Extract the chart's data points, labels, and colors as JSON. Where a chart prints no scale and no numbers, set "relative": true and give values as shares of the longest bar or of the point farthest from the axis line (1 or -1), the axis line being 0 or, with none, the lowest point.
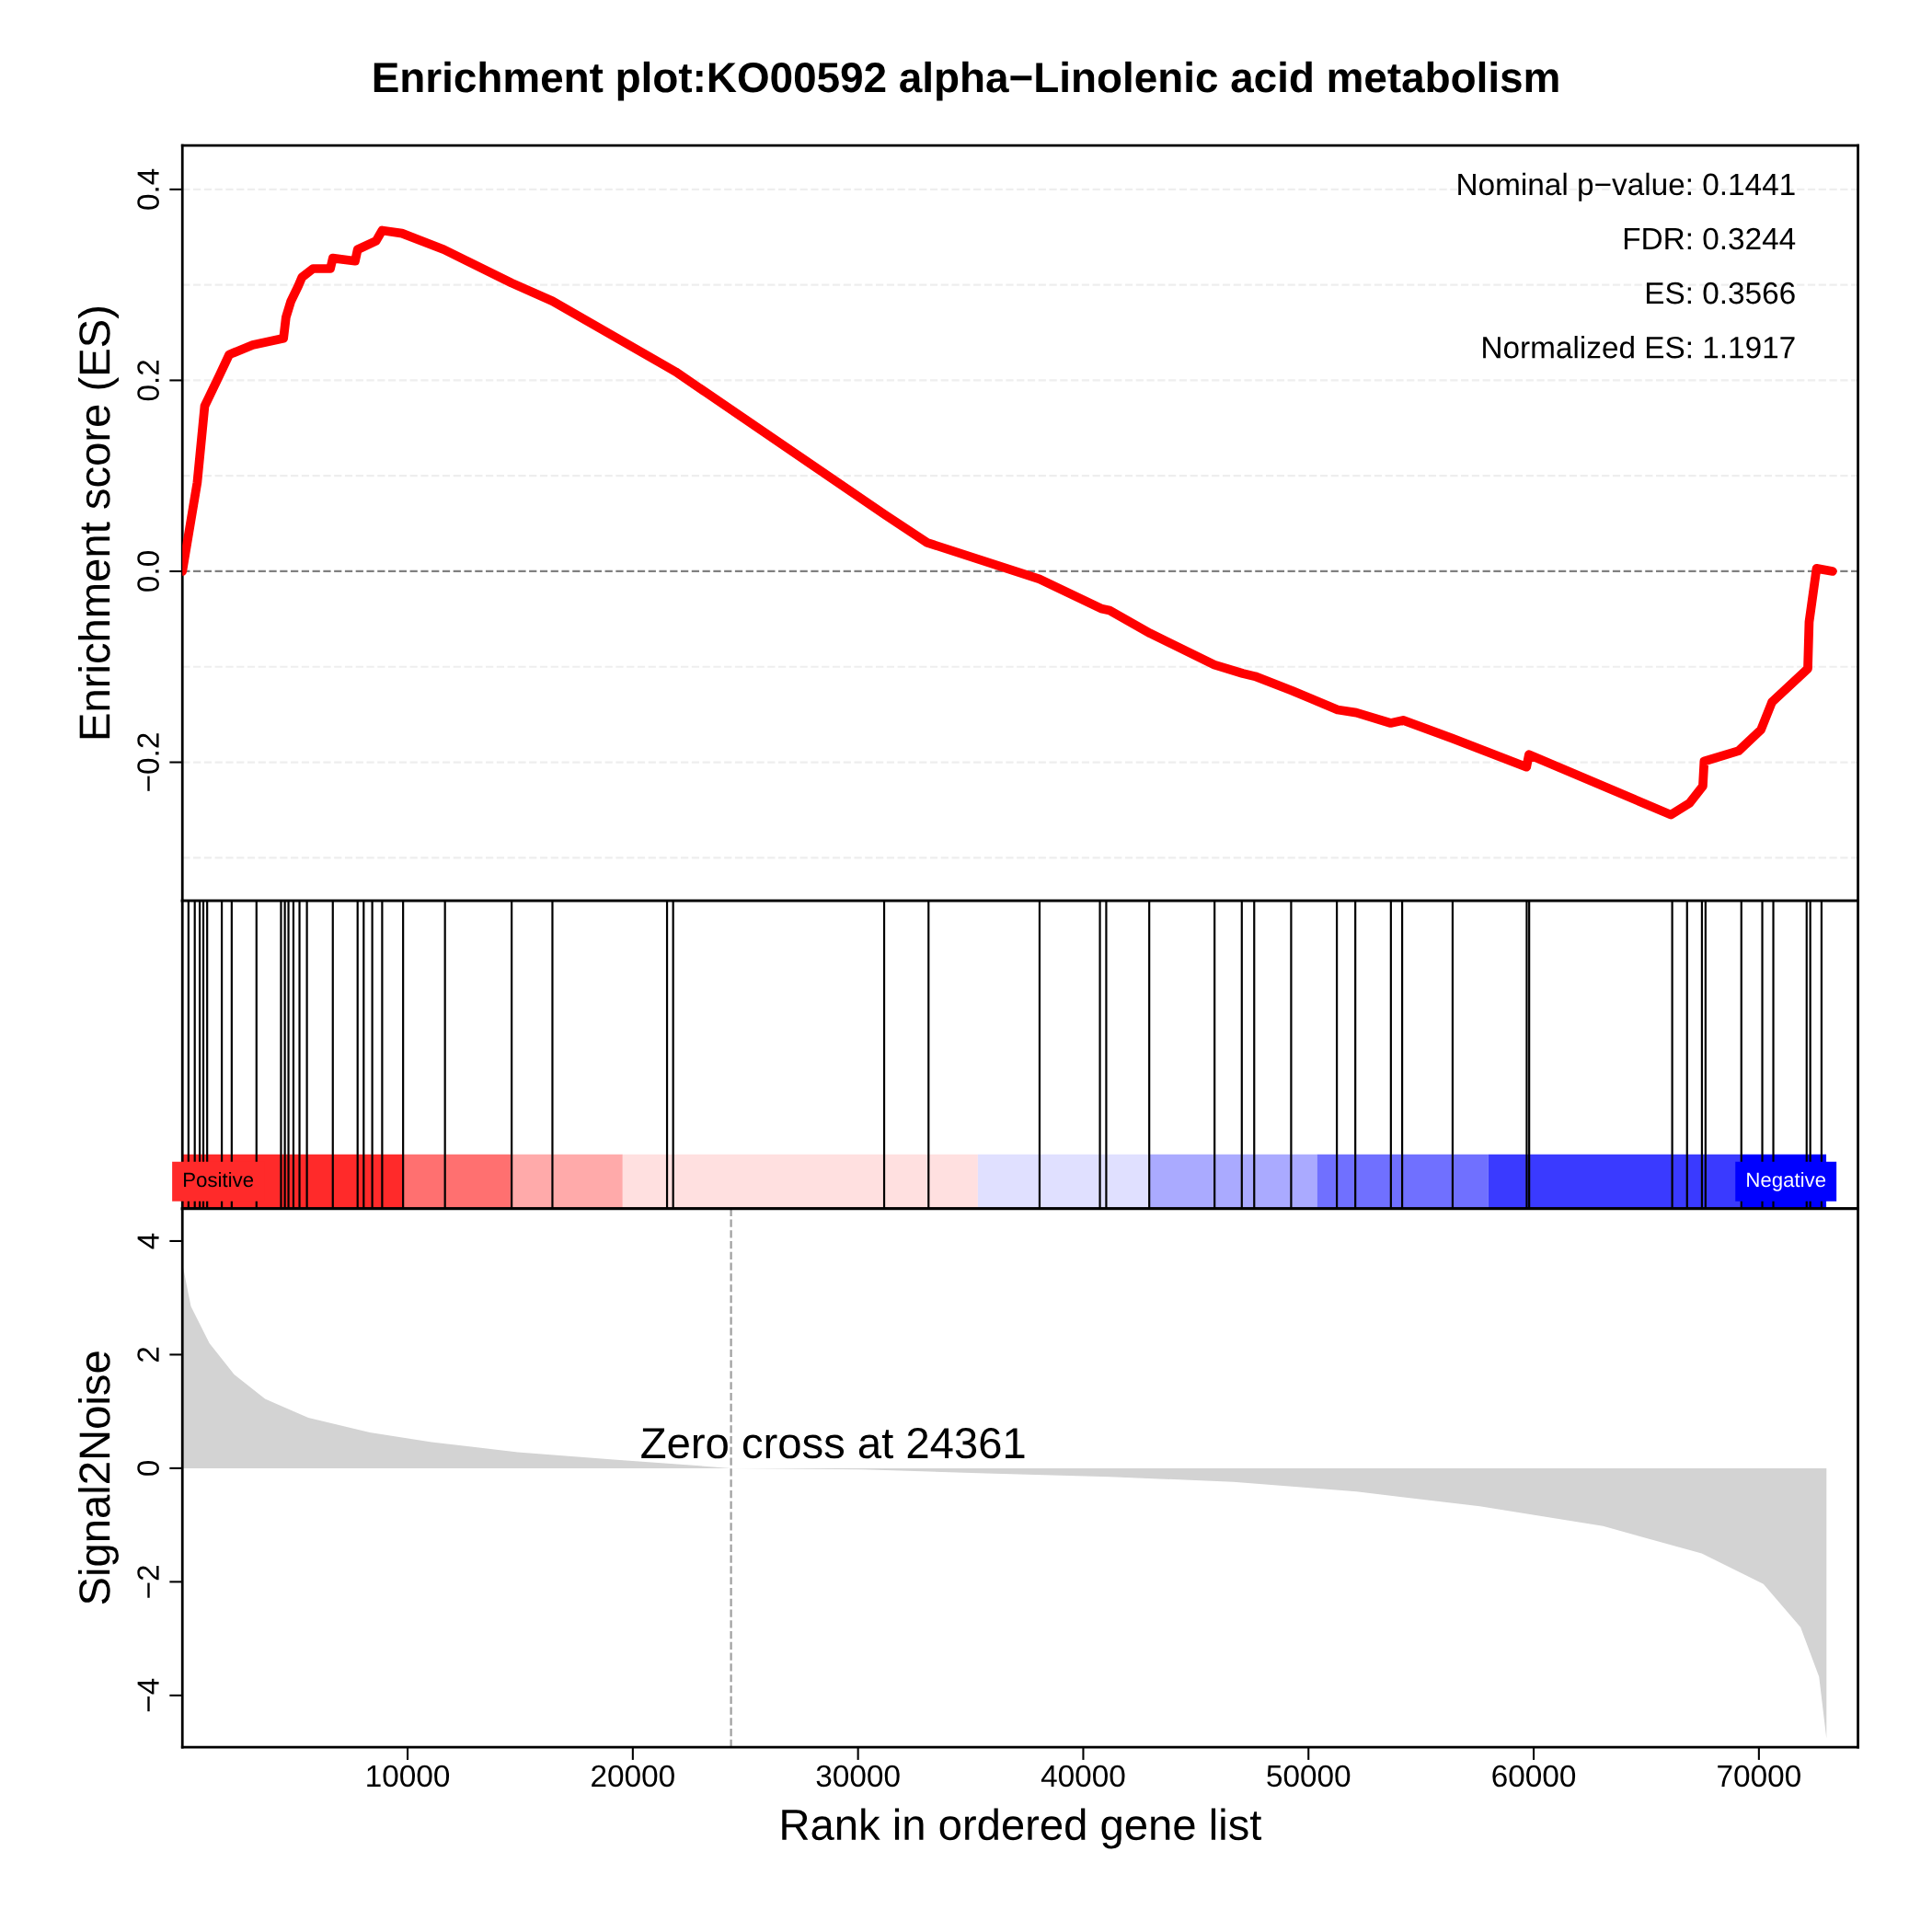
{
  "chart_data": [
    {
      "type": "line",
      "title": "Enrichment plot:KO00592 alpha−Linolenic acid metabolism",
      "ylabel": "Enrichment score (ES)",
      "tick_labels": "y",
      "xlim": [
        0,
        74400
      ],
      "ylim": [
        -0.345,
        0.446
      ],
      "yticks": [
        {
          "value": -0.2,
          "label": "−0.2"
        },
        {
          "value": 0.0,
          "label": "0.0"
        },
        {
          "value": 0.2,
          "label": "0.2"
        },
        {
          "value": 0.4,
          "label": "0.4"
        }
      ],
      "x": [
        0,
        660,
        990,
        1640,
        2080,
        3120,
        4490,
        4600,
        4820,
        5150,
        5310,
        5800,
        6570,
        6680,
        7670,
        7780,
        8600,
        8870,
        9750,
        11610,
        14620,
        16430,
        21460,
        21900,
        31210,
        33070,
        38050,
        40790,
        41170,
        42970,
        45820,
        47080,
        47630,
        49270,
        51290,
        52120,
        53650,
        54200,
        56390,
        59680,
        59790,
        66090,
        66910,
        67510,
        67570,
        69100,
        70090,
        70580,
        72170,
        72230,
        72560,
        73270
      ],
      "series": [
        {
          "color": "#ff0000",
          "values": [
            0,
            0.093,
            0.173,
            0.205,
            0.227,
            0.237,
            0.244,
            0.266,
            0.283,
            0.299,
            0.308,
            0.317,
            0.317,
            0.328,
            0.325,
            0.337,
            0.346,
            0.357,
            0.354,
            0.337,
            0.302,
            0.283,
            0.215,
            0.209,
            0.059,
            0.03,
            -0.008,
            -0.039,
            -0.041,
            -0.065,
            -0.098,
            -0.107,
            -0.11,
            -0.125,
            -0.145,
            -0.148,
            -0.159,
            -0.156,
            -0.175,
            -0.205,
            -0.192,
            -0.255,
            -0.243,
            -0.225,
            -0.199,
            -0.188,
            -0.166,
            -0.137,
            -0.102,
            -0.053,
            0.003,
            0
          ]
        }
      ],
      "line_style": "solid",
      "marker": "none",
      "ref_lines": [
        {
          "axis": "y",
          "value": -0.3,
          "color": "#eeeeee",
          "line_style": "dashed"
        },
        {
          "axis": "y",
          "value": -0.2,
          "color": "#eeeeee",
          "line_style": "dashed"
        },
        {
          "axis": "y",
          "value": -0.1,
          "color": "#eeeeee",
          "line_style": "dashed"
        },
        {
          "axis": "y",
          "value": 0.0,
          "color": "#808080",
          "line_style": "dashed"
        },
        {
          "axis": "y",
          "value": 0.1,
          "color": "#eeeeee",
          "line_style": "dashed"
        },
        {
          "axis": "y",
          "value": 0.2,
          "color": "#eeeeee",
          "line_style": "dashed"
        },
        {
          "axis": "y",
          "value": 0.3,
          "color": "#eeeeee",
          "line_style": "dashed"
        },
        {
          "axis": "y",
          "value": 0.4,
          "color": "#eeeeee",
          "line_style": "dashed"
        }
      ],
      "annotations": [
        "Nominal p−value: 0.1441",
        "FDR: 0.3244",
        "ES: 0.3566",
        "Normalized ES: 1.1917"
      ]
    },
    {
      "type": "bar",
      "relative": true,
      "tick_labels": false,
      "xlim": [
        0,
        74400
      ],
      "x": [
        270,
        550,
        770,
        930,
        1100,
        1750,
        2190,
        3290,
        4380,
        4550,
        4710,
        4930,
        5200,
        5530,
        6680,
        7780,
        8050,
        8430,
        8870,
        9800,
        11660,
        14620,
        16430,
        21520,
        21790,
        31160,
        33130,
        38060,
        40740,
        41020,
        42930,
        45830,
        47040,
        47590,
        49230,
        51260,
        52080,
        53660,
        54160,
        56400,
        59690,
        59800,
        66150,
        66810,
        67470,
        67630,
        69220,
        70150,
        70640,
        72120,
        72280,
        72780
      ],
      "values": [
        1,
        1,
        1,
        1,
        1,
        1,
        1,
        1,
        1,
        1,
        1,
        1,
        1,
        1,
        1,
        1,
        1,
        1,
        1,
        1,
        1,
        1,
        1,
        1,
        1,
        1,
        1,
        1,
        1,
        1,
        1,
        1,
        1,
        1,
        1,
        1,
        1,
        1,
        1,
        1,
        1,
        1,
        1,
        1,
        1,
        1,
        1,
        1,
        1,
        1,
        1,
        1
      ],
      "color": "#000000",
      "bands": [
        {
          "axis": "x",
          "from": 0,
          "to": 9800,
          "color": "#ff2a2a"
        },
        {
          "axis": "x",
          "from": 9800,
          "to": 14620,
          "color": "#ff7070"
        },
        {
          "axis": "x",
          "from": 14620,
          "to": 19550,
          "color": "#ffaaaa"
        },
        {
          "axis": "x",
          "from": 19550,
          "to": 35320,
          "color": "#ffe0e0"
        },
        {
          "axis": "x",
          "from": 35320,
          "to": 42930,
          "color": "#e0e0ff"
        },
        {
          "axis": "x",
          "from": 42930,
          "to": 50380,
          "color": "#aaaaff"
        },
        {
          "axis": "x",
          "from": 50380,
          "to": 57990,
          "color": "#7070ff"
        },
        {
          "axis": "x",
          "from": 57990,
          "to": 69270,
          "color": "#3a3aff"
        },
        {
          "axis": "x",
          "from": 69270,
          "to": 72990,
          "color": "#0000ff"
        }
      ],
      "annotations": [
        "Positive",
        "Negative"
      ]
    },
    {
      "type": "area",
      "xlabel": "Rank in ordered gene list",
      "ylabel": "Signal2Noise",
      "xlim": [
        0,
        74400
      ],
      "ylim": [
        -4.91,
        4.57
      ],
      "xticks": [
        10000,
        20000,
        30000,
        40000,
        50000,
        60000,
        70000
      ],
      "yticks": [
        {
          "value": -4,
          "label": "−4"
        },
        {
          "value": -2,
          "label": "−2"
        },
        0,
        2,
        4
      ],
      "x": [
        0,
        380,
        1200,
        2300,
        3670,
        5590,
        8320,
        11060,
        14890,
        19280,
        24361,
        30230,
        35700,
        41180,
        46660,
        52130,
        57610,
        63080,
        67460,
        70200,
        71850,
        72670,
        73000
      ],
      "series": [
        {
          "color": "#d3d3d3",
          "values": [
            3.6,
            2.85,
            2.2,
            1.65,
            1.22,
            0.89,
            0.63,
            0.46,
            0.28,
            0.15,
            0,
            -0.02,
            -0.09,
            -0.15,
            -0.24,
            -0.41,
            -0.67,
            -1.02,
            -1.5,
            -2.04,
            -2.8,
            -3.67,
            -4.76
          ]
        }
      ],
      "ref_lines": [
        {
          "axis": "x",
          "value": 24361,
          "label": "Zero cross at 24361",
          "color": "#a0a0a0",
          "line_style": "dashed"
        }
      ]
    }
  ]
}
